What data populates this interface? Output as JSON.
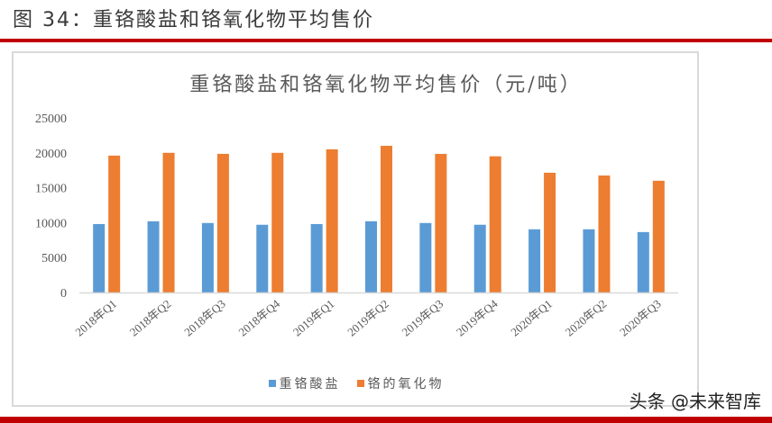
{
  "figure": {
    "caption": "图 34：重铬酸盐和铬氧化物平均售价",
    "watermark": "头条 @未来智库"
  },
  "colors": {
    "rule": "#c00000",
    "series_blue": "#5b9bd5",
    "series_orange": "#ed7d31",
    "axis": "#d9d9d9",
    "text": "#595959"
  },
  "chart_data": {
    "type": "bar",
    "title": "重铬酸盐和铬氧化物平均售价（元/吨）",
    "xlabel": "",
    "ylabel": "",
    "ylim": [
      0,
      25000
    ],
    "yticks": [
      0,
      5000,
      10000,
      15000,
      20000,
      25000
    ],
    "grid": false,
    "legend_position": "bottom",
    "categories": [
      "2018年Q1",
      "2018年Q2",
      "2018年Q3",
      "2018年Q4",
      "2019年Q1",
      "2019年Q2",
      "2019年Q3",
      "2019年Q4",
      "2020年Q1",
      "2020年Q2",
      "2020年Q3"
    ],
    "series": [
      {
        "name": "重铬酸盐",
        "color": "#5b9bd5",
        "values": [
          9800,
          10200,
          9950,
          9700,
          9800,
          10200,
          9950,
          9700,
          9050,
          9050,
          8650
        ]
      },
      {
        "name": "铬的氧化物",
        "color": "#ed7d31",
        "values": [
          19600,
          20000,
          19850,
          20000,
          20500,
          21000,
          19850,
          19500,
          17150,
          16750,
          16000
        ]
      }
    ]
  }
}
